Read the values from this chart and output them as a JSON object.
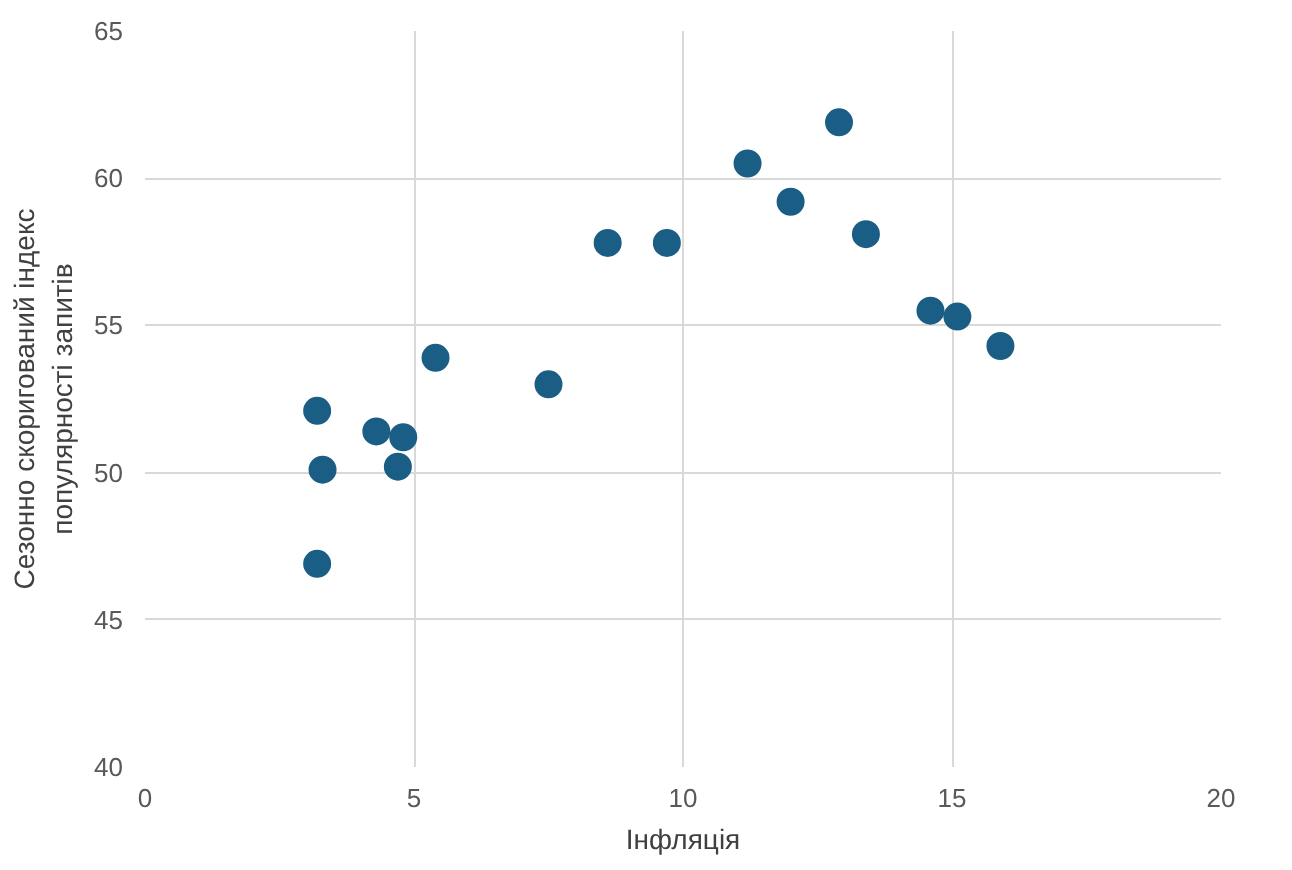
{
  "chart_data": {
    "type": "scatter",
    "xlabel": "Інфляція",
    "ylabel": "Сезонно скоригований індекс\nпопулярності запитів",
    "x": [
      3.2,
      3.3,
      3.2,
      4.3,
      4.7,
      4.8,
      5.4,
      7.5,
      8.6,
      9.7,
      11.2,
      12.0,
      12.9,
      13.4,
      14.6,
      15.1,
      15.9
    ],
    "series": [
      {
        "color": "#1b5e85",
        "values": [
          52.1,
          50.1,
          46.9,
          51.4,
          50.2,
          51.2,
          53.9,
          53.0,
          57.8,
          57.8,
          60.5,
          59.2,
          61.9,
          58.1,
          55.5,
          55.3,
          54.3
        ]
      }
    ],
    "xlim": [
      0,
      20
    ],
    "xticks": [
      0,
      5,
      10,
      15,
      20
    ],
    "ylim": [
      40,
      65
    ],
    "yticks": [
      40,
      45,
      50,
      55,
      60,
      65
    ],
    "grid": true,
    "marker": "circle"
  }
}
